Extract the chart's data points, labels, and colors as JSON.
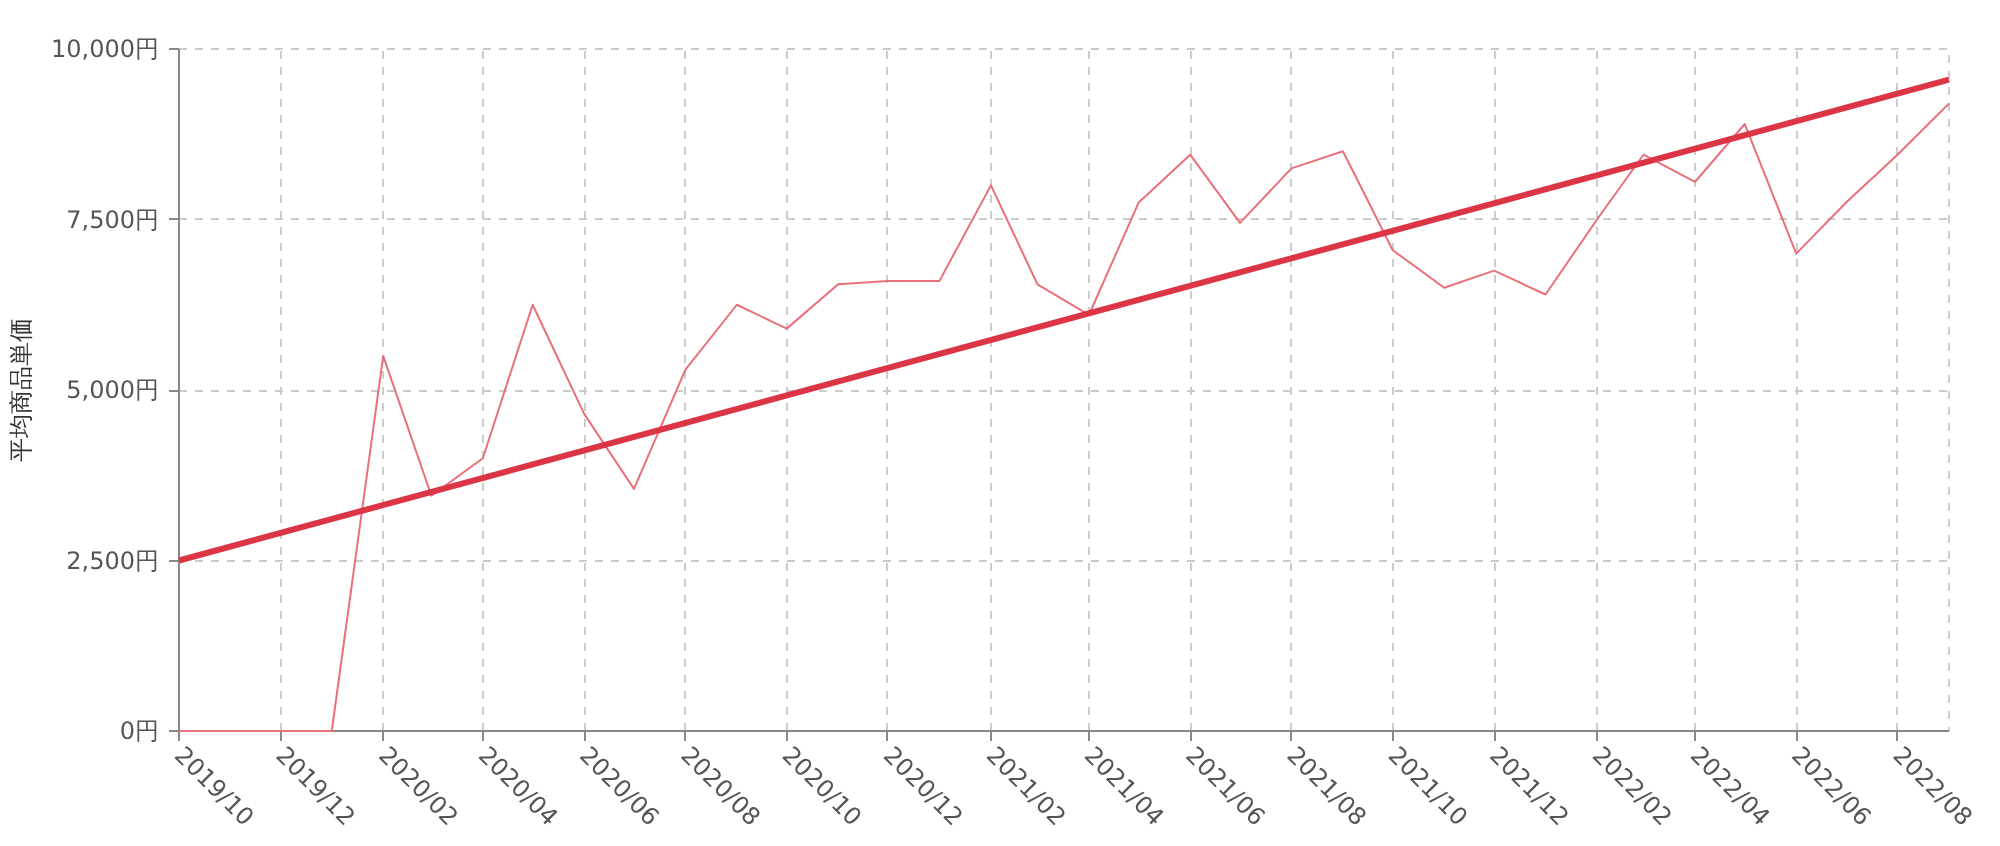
{
  "chart_data": {
    "type": "line",
    "ylabel": "平均商品単価",
    "x": [
      "2019-10",
      "2019-11",
      "2019-12",
      "2020-01",
      "2020-02",
      "2020-03",
      "2020-04",
      "2020-05",
      "2020-06",
      "2020-07",
      "2020-08",
      "2020-09",
      "2020-10",
      "2020-11",
      "2020-12",
      "2021-01",
      "2021-02",
      "2021-03",
      "2021-04",
      "2021-05",
      "2021-06",
      "2021-07",
      "2021-08",
      "2021-09",
      "2021-10",
      "2021-11",
      "2021-12",
      "2022-01",
      "2022-02",
      "2022-03",
      "2022-04",
      "2022-05",
      "2022-06",
      "2022-07",
      "2022-08",
      "2022-09"
    ],
    "series": [
      {
        "color": "#e8707a",
        "values": [
          0,
          0,
          0,
          0,
          5500,
          3450,
          4000,
          6250,
          4650,
          3550,
          5300,
          6250,
          5900,
          6550,
          6600,
          6600,
          8000,
          6550,
          6100,
          7750,
          8450,
          7450,
          8250,
          8500,
          7050,
          6500,
          6750,
          6400,
          7500,
          8450,
          8050,
          8900,
          7000,
          7750,
          8450,
          9200
        ]
      },
      {
        "type": "line",
        "x": [
          "2019-10",
          "2022-09"
        ],
        "color": "#dc3545",
        "values": [
          2500,
          9550
        ]
      }
    ],
    "xlim": [
      "2019-10",
      "2022-09"
    ],
    "ylim": [
      0,
      10000
    ],
    "xticks": [
      {
        "value": "2019-10",
        "label": "2019/10"
      },
      {
        "value": "2019-12",
        "label": "2019/12"
      },
      {
        "value": "2020-02",
        "label": "2020/02"
      },
      {
        "value": "2020-04",
        "label": "2020/04"
      },
      {
        "value": "2020-06",
        "label": "2020/06"
      },
      {
        "value": "2020-08",
        "label": "2020/08"
      },
      {
        "value": "2020-10",
        "label": "2020/10"
      },
      {
        "value": "2020-12",
        "label": "2020/12"
      },
      {
        "value": "2021-02",
        "label": "2021/02"
      },
      {
        "value": "2021-04",
        "label": "2021/04"
      },
      {
        "value": "2021-06",
        "label": "2021/06"
      },
      {
        "value": "2021-08",
        "label": "2021/08"
      },
      {
        "value": "2021-10",
        "label": "2021/10"
      },
      {
        "value": "2021-12",
        "label": "2021/12"
      },
      {
        "value": "2022-02",
        "label": "2022/02"
      },
      {
        "value": "2022-04",
        "label": "2022/04"
      },
      {
        "value": "2022-06",
        "label": "2022/06"
      },
      {
        "value": "2022-08",
        "label": "2022/08"
      }
    ],
    "yticks": [
      {
        "value": 0,
        "label": "0円"
      },
      {
        "value": 2500,
        "label": "2,500円"
      },
      {
        "value": 5000,
        "label": "5,000円"
      },
      {
        "value": 7500,
        "label": "7,500円"
      },
      {
        "value": 10000,
        "label": "10,000円"
      }
    ],
    "grid": true,
    "line_style": "solid"
  }
}
